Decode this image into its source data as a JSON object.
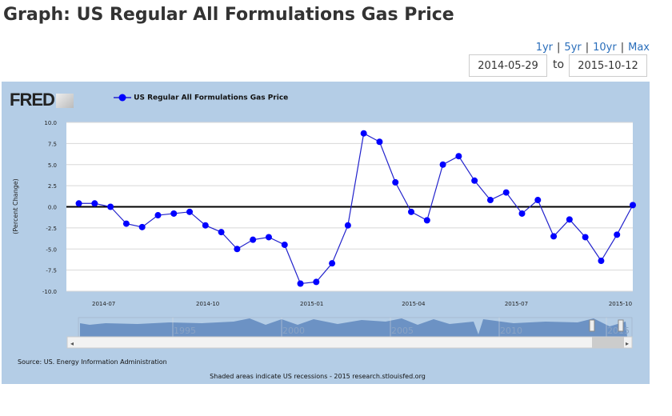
{
  "title": "Graph: US Regular All Formulations Gas Price",
  "ranges": [
    "1yr",
    "5yr",
    "10yr",
    "Max"
  ],
  "date_from": "2014-05-29",
  "to_label": "to",
  "date_to": "2015-10-12",
  "logo": "FRED",
  "source": "Source: US. Energy Information Administration",
  "note": "Shaded areas indicate US recessions - 2015 research.stlouisfed.org",
  "navigator_labels": [
    "1995",
    "2000",
    "2005",
    "2010",
    "2015"
  ],
  "colors": {
    "series": "#0000ff",
    "panel": "#b4cde6",
    "line": "#2222cc"
  },
  "chart_data": {
    "type": "line",
    "title": "",
    "legend": [
      "US Regular All Formulations Gas Price"
    ],
    "legend_position": "top-left",
    "ylabel": "(Percent Change)",
    "xlabel": "",
    "ylim": [
      -10,
      10
    ],
    "xlim": [
      "2014-05-29",
      "2015-10-12"
    ],
    "yticks": [
      "10.0",
      "7.5",
      "5.0",
      "2.5",
      "0.0",
      "-2.5",
      "-5.0",
      "-7.5",
      "-10.0"
    ],
    "ytick_values": [
      10,
      7.5,
      5,
      2.5,
      0,
      -2.5,
      -5,
      -7.5,
      -10
    ],
    "xticks": [
      "2014-07",
      "2014-10",
      "2015-01",
      "2015-04",
      "2015-07",
      "2015-10"
    ],
    "xtick_dates": [
      "2014-07-01",
      "2014-10-01",
      "2015-01-01",
      "2015-04-01",
      "2015-07-01",
      "2015-10-01"
    ],
    "grid": true,
    "series": [
      {
        "name": "US Regular All Formulations Gas Price",
        "x": [
          "2014-06-09",
          "2014-06-23",
          "2014-07-07",
          "2014-07-21",
          "2014-08-04",
          "2014-08-18",
          "2014-09-01",
          "2014-09-15",
          "2014-09-29",
          "2014-10-13",
          "2014-10-27",
          "2014-11-10",
          "2014-11-24",
          "2014-12-08",
          "2014-12-22",
          "2015-01-05",
          "2015-01-19",
          "2015-02-02",
          "2015-02-16",
          "2015-03-02",
          "2015-03-16",
          "2015-03-30",
          "2015-04-13",
          "2015-04-27",
          "2015-05-11",
          "2015-05-25",
          "2015-06-08",
          "2015-06-22",
          "2015-07-06",
          "2015-07-20",
          "2015-08-03",
          "2015-08-17",
          "2015-08-31",
          "2015-09-14",
          "2015-09-28",
          "2015-10-12"
        ],
        "values": [
          0.4,
          0.4,
          0.0,
          -2.0,
          -2.4,
          -1.0,
          -0.8,
          -0.6,
          -2.2,
          -3.0,
          -5.0,
          -3.9,
          -3.6,
          -4.5,
          -9.1,
          -8.9,
          -6.7,
          -2.2,
          8.7,
          7.7,
          2.9,
          -0.6,
          -1.6,
          5.0,
          6.0,
          3.1,
          0.8,
          1.7,
          -0.8,
          0.8,
          -3.5,
          -1.5,
          -3.6,
          -6.4,
          -3.3,
          0.2
        ]
      }
    ]
  }
}
